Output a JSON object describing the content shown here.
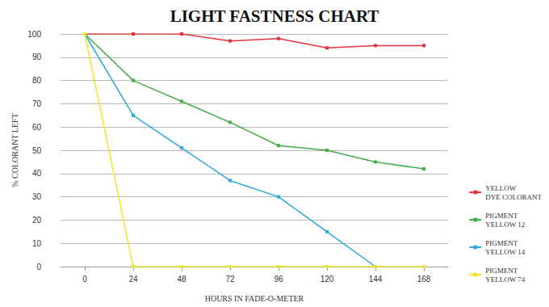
{
  "chart_data": {
    "type": "line",
    "title": "LIGHT FASTNESS CHART",
    "x_label": "HOURS IN FADE-O-METER",
    "y_label": "% COLORANT LEFT",
    "categories": [
      "0",
      "24",
      "48",
      "72",
      "96",
      "120",
      "144",
      "168"
    ],
    "series": [
      {
        "name": "YELLOW DYE COLORANT",
        "color": "#e5323b",
        "marker": "square",
        "values": [
          100,
          100,
          100,
          97,
          98,
          94,
          95,
          95
        ]
      },
      {
        "name": "PIGMENT YELLOW 12",
        "color": "#43ad49",
        "marker": "square",
        "values": [
          100,
          80,
          71,
          62,
          52,
          50,
          45,
          42
        ]
      },
      {
        "name": "PIGMENT YELLOW 14",
        "color": "#2aa9e0",
        "marker": "square",
        "values": [
          100,
          65,
          51,
          37,
          30,
          15,
          0,
          null
        ]
      },
      {
        "name": "PIGMENT YELLOW 74",
        "color": "#f2e422",
        "marker": "square",
        "values": [
          100,
          0,
          0,
          0,
          0,
          0,
          0,
          0
        ]
      }
    ],
    "ylim": [
      0,
      100
    ],
    "yticks": [
      0,
      10,
      20,
      30,
      40,
      50,
      60,
      70,
      80,
      90,
      100
    ],
    "grid": true,
    "legend": "right"
  }
}
